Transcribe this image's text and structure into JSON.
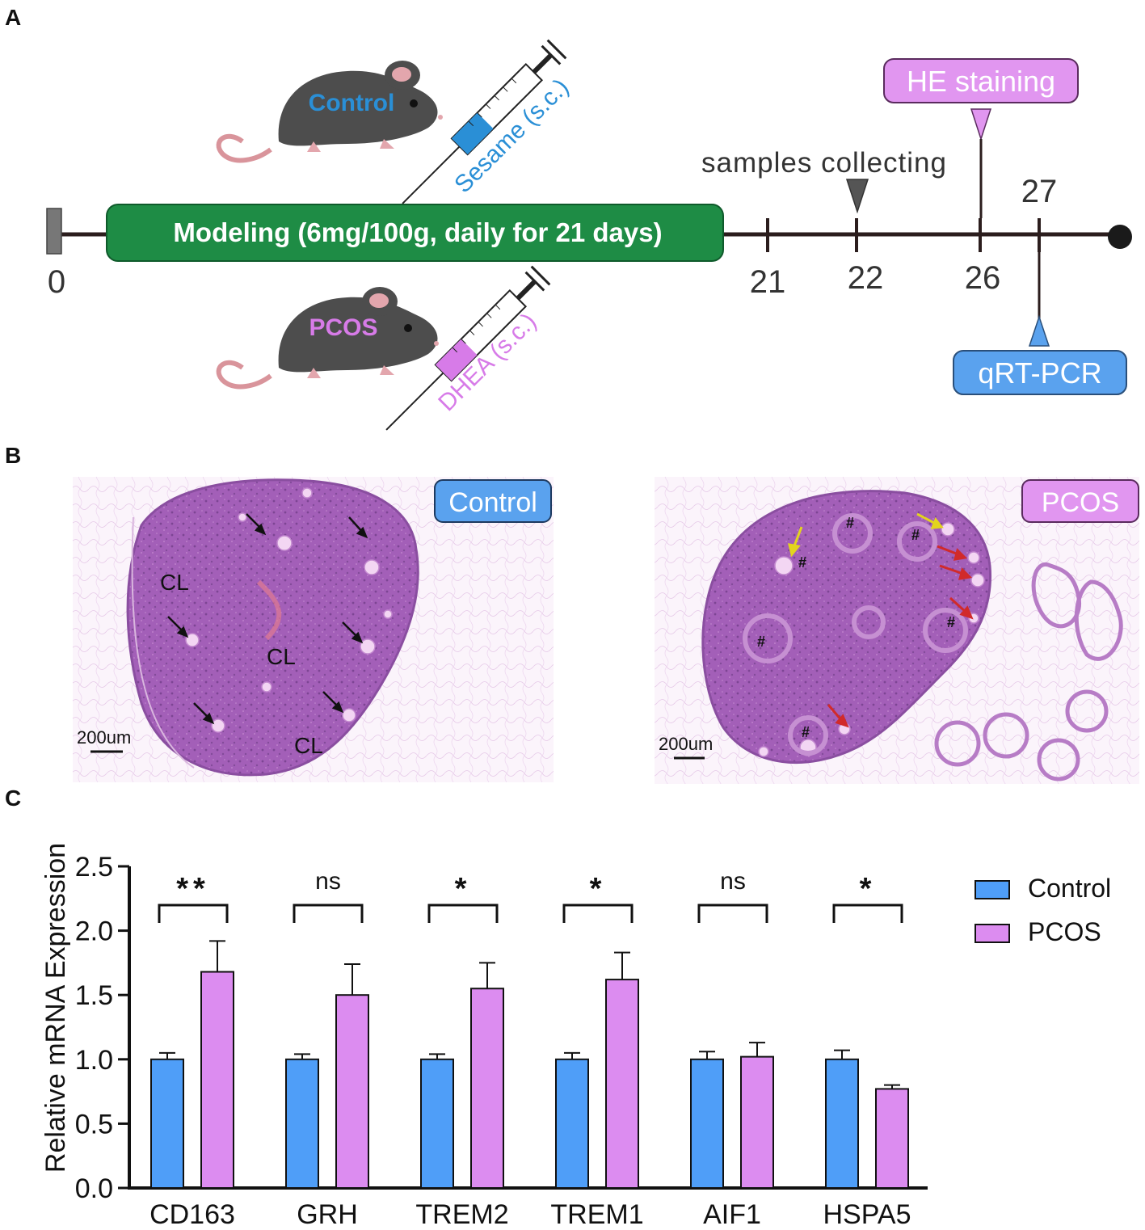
{
  "panels": {
    "a": "A",
    "b": "B",
    "c": "C"
  },
  "timeline": {
    "modeling_label": "Modeling (6mg/100g, daily for 21 days)",
    "day_start": "0",
    "days_below": [
      "21",
      "22",
      "26"
    ],
    "day_above": "27",
    "samples_label": "samples collecting",
    "he_label": "HE staining",
    "qrt_label": "qRT-PCR",
    "control_mouse": "Control",
    "pcos_mouse": "PCOS",
    "control_injection": "Sesame (s.c.)",
    "pcos_injection": "DHEA (s.c.)",
    "colors": {
      "modeling": "#1e8c45",
      "control": "#2a8fd6",
      "pcos": "#d77be8",
      "he_box": "#e196f0",
      "qrt_box": "#5aa2ee"
    }
  },
  "histology": {
    "control_badge": "Control",
    "pcos_badge": "PCOS",
    "cl_labels": [
      "CL",
      "CL",
      "CL"
    ],
    "hash_mark": "#",
    "scalebar_left": "200um",
    "scalebar_right": "200um"
  },
  "chart_data": {
    "type": "bar",
    "ylabel": "Relative mRNA Expression",
    "ylim": [
      0,
      2.5
    ],
    "yticks": [
      "0.0",
      "0.5",
      "1.0",
      "1.5",
      "2.0",
      "2.5"
    ],
    "categories": [
      "CD163",
      "GRH",
      "TREM2",
      "TREM1",
      "AIF1",
      "HSPA5"
    ],
    "series": [
      {
        "name": "Control",
        "color": "#4f9ef8",
        "values": [
          1.0,
          1.0,
          1.0,
          1.0,
          1.0,
          1.0
        ],
        "errors": [
          0.05,
          0.04,
          0.04,
          0.05,
          0.06,
          0.07
        ]
      },
      {
        "name": "PCOS",
        "color": "#dc8cf0",
        "values": [
          1.68,
          1.5,
          1.55,
          1.62,
          1.02,
          0.77
        ],
        "errors": [
          0.24,
          0.24,
          0.2,
          0.21,
          0.11,
          0.03
        ]
      }
    ],
    "significance": [
      "**",
      "ns",
      "*",
      "*",
      "ns",
      "*"
    ],
    "legend": "right"
  }
}
